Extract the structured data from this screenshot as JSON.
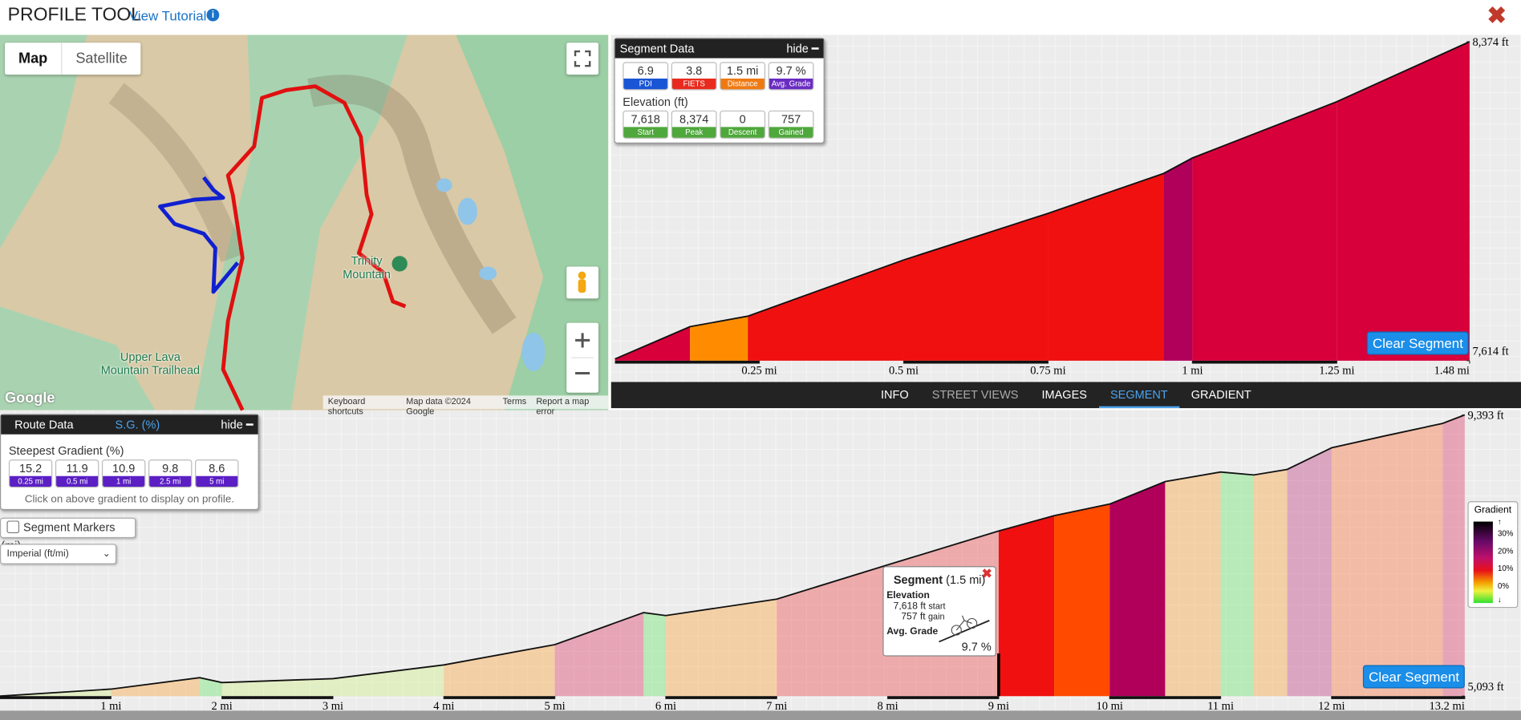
{
  "header": {
    "title": "PROFILE TOOL",
    "tutorial": "View Tutorial"
  },
  "map": {
    "buttons": [
      "Map",
      "Satellite"
    ],
    "labels": [
      "Trinity Mountain",
      "Upper Lava Mountain Trailhead"
    ],
    "footer": [
      "Keyboard shortcuts",
      "Map data ©2024 Google",
      "Terms",
      "Report a map error"
    ],
    "logo": "Google"
  },
  "segment_panel": {
    "title": "Segment Data",
    "hide": "hide",
    "stats": [
      {
        "value": "6.9",
        "label": "PDI"
      },
      {
        "value": "3.8",
        "label": "FIETS"
      },
      {
        "value": "1.5 mi",
        "label": "Distance"
      },
      {
        "value": "9.7 %",
        "label": "Avg. Grade"
      }
    ],
    "elevation_title": "Elevation (ft)",
    "elevation": [
      {
        "value": "7,618",
        "label": "Start"
      },
      {
        "value": "8,374",
        "label": "Peak"
      },
      {
        "value": "0",
        "label": "Descent"
      },
      {
        "value": "757",
        "label": "Gained"
      }
    ]
  },
  "tabs": [
    "INFO",
    "STREET VIEWS",
    "IMAGES",
    "SEGMENT",
    "GRADIENT"
  ],
  "route_panel": {
    "title": "Route Data",
    "tab": "S.G. (%)",
    "hide": "hide",
    "subtitle": "Steepest Gradient (%)",
    "gradients": [
      {
        "value": "15.2",
        "label": "0.25 mi"
      },
      {
        "value": "11.9",
        "label": "0.5 mi"
      },
      {
        "value": "10.9",
        "label": "1 mi"
      },
      {
        "value": "9.8",
        "label": "2.5 mi"
      },
      {
        "value": "8.6",
        "label": "5 mi"
      }
    ],
    "hint": "Click on above gradient to display on profile."
  },
  "controls": {
    "segment_markers": "Segment Markers (mi)",
    "units": "Imperial (ft/mi)"
  },
  "chart_data": [
    {
      "type": "area",
      "x": [
        0,
        0.13,
        0.23,
        0.5,
        0.75,
        0.95,
        1,
        1.25,
        1.48
      ],
      "values": [
        7618,
        7695,
        7720,
        7854,
        7965,
        8060,
        8097,
        8231,
        8374
      ],
      "xlim": [
        0,
        1.48
      ],
      "ylim": [
        7614,
        8374
      ],
      "xticks": [
        {
          "value": 0.25,
          "label": "0.25 mi"
        },
        {
          "value": 0.5,
          "label": "0.5 mi"
        },
        {
          "value": 0.75,
          "label": "0.75 mi"
        },
        {
          "value": 1,
          "label": "1 mi"
        },
        {
          "value": 1.25,
          "label": "1.25 mi"
        },
        {
          "value": 1.48,
          "label": "1.48 mi"
        }
      ],
      "yticks": [
        {
          "value": 7614,
          "label": "7,614 ft"
        },
        {
          "value": 8374,
          "label": "8,374 ft"
        }
      ],
      "button": "Clear Segment"
    },
    {
      "type": "area",
      "x": [
        0,
        1,
        1.8,
        2,
        3,
        4,
        5,
        5.8,
        6,
        7,
        8,
        9,
        9.5,
        10,
        10.5,
        11,
        11.3,
        11.6,
        12,
        12.5,
        13,
        13.2
      ],
      "values": [
        5093,
        5200,
        5375,
        5300,
        5360,
        5570,
        5880,
        6370,
        6325,
        6576,
        7100,
        7618,
        7853,
        8030,
        8374,
        8520,
        8475,
        8560,
        8890,
        9080,
        9263,
        9393
      ],
      "xlim": [
        0,
        13.2
      ],
      "ylim": [
        5093,
        9393
      ],
      "xticks": [
        {
          "value": 1,
          "label": "1 mi"
        },
        {
          "value": 2,
          "label": "2 mi"
        },
        {
          "value": 3,
          "label": "3 mi"
        },
        {
          "value": 4,
          "label": "4 mi"
        },
        {
          "value": 5,
          "label": "5 mi"
        },
        {
          "value": 6,
          "label": "6 mi"
        },
        {
          "value": 7,
          "label": "7 mi"
        },
        {
          "value": 8,
          "label": "8 mi"
        },
        {
          "value": 9,
          "label": "9 mi"
        },
        {
          "value": 10,
          "label": "10 mi"
        },
        {
          "value": 11,
          "label": "11 mi"
        },
        {
          "value": 12,
          "label": "12 mi"
        },
        {
          "value": 13.2,
          "label": "13.2 mi"
        }
      ],
      "yticks": [
        {
          "value": 5093,
          "label": "5,093 ft"
        },
        {
          "value": 9393,
          "label": "9,393 ft"
        }
      ],
      "highlight": [
        9,
        10.5
      ],
      "button": "Clear Segment",
      "tooltip": {
        "title": "Segment",
        "distance": "(1.5 mi)",
        "elevation": "Elevation",
        "start": "7,618 ft",
        "start_label": "start",
        "gain": "757 ft",
        "gain_label": "gain",
        "grade_label": "Avg. Grade",
        "grade": "9.7 %"
      },
      "legend": {
        "title": "Gradient",
        "labels": [
          "30%",
          "20%",
          "10%",
          "0%"
        ]
      }
    }
  ]
}
